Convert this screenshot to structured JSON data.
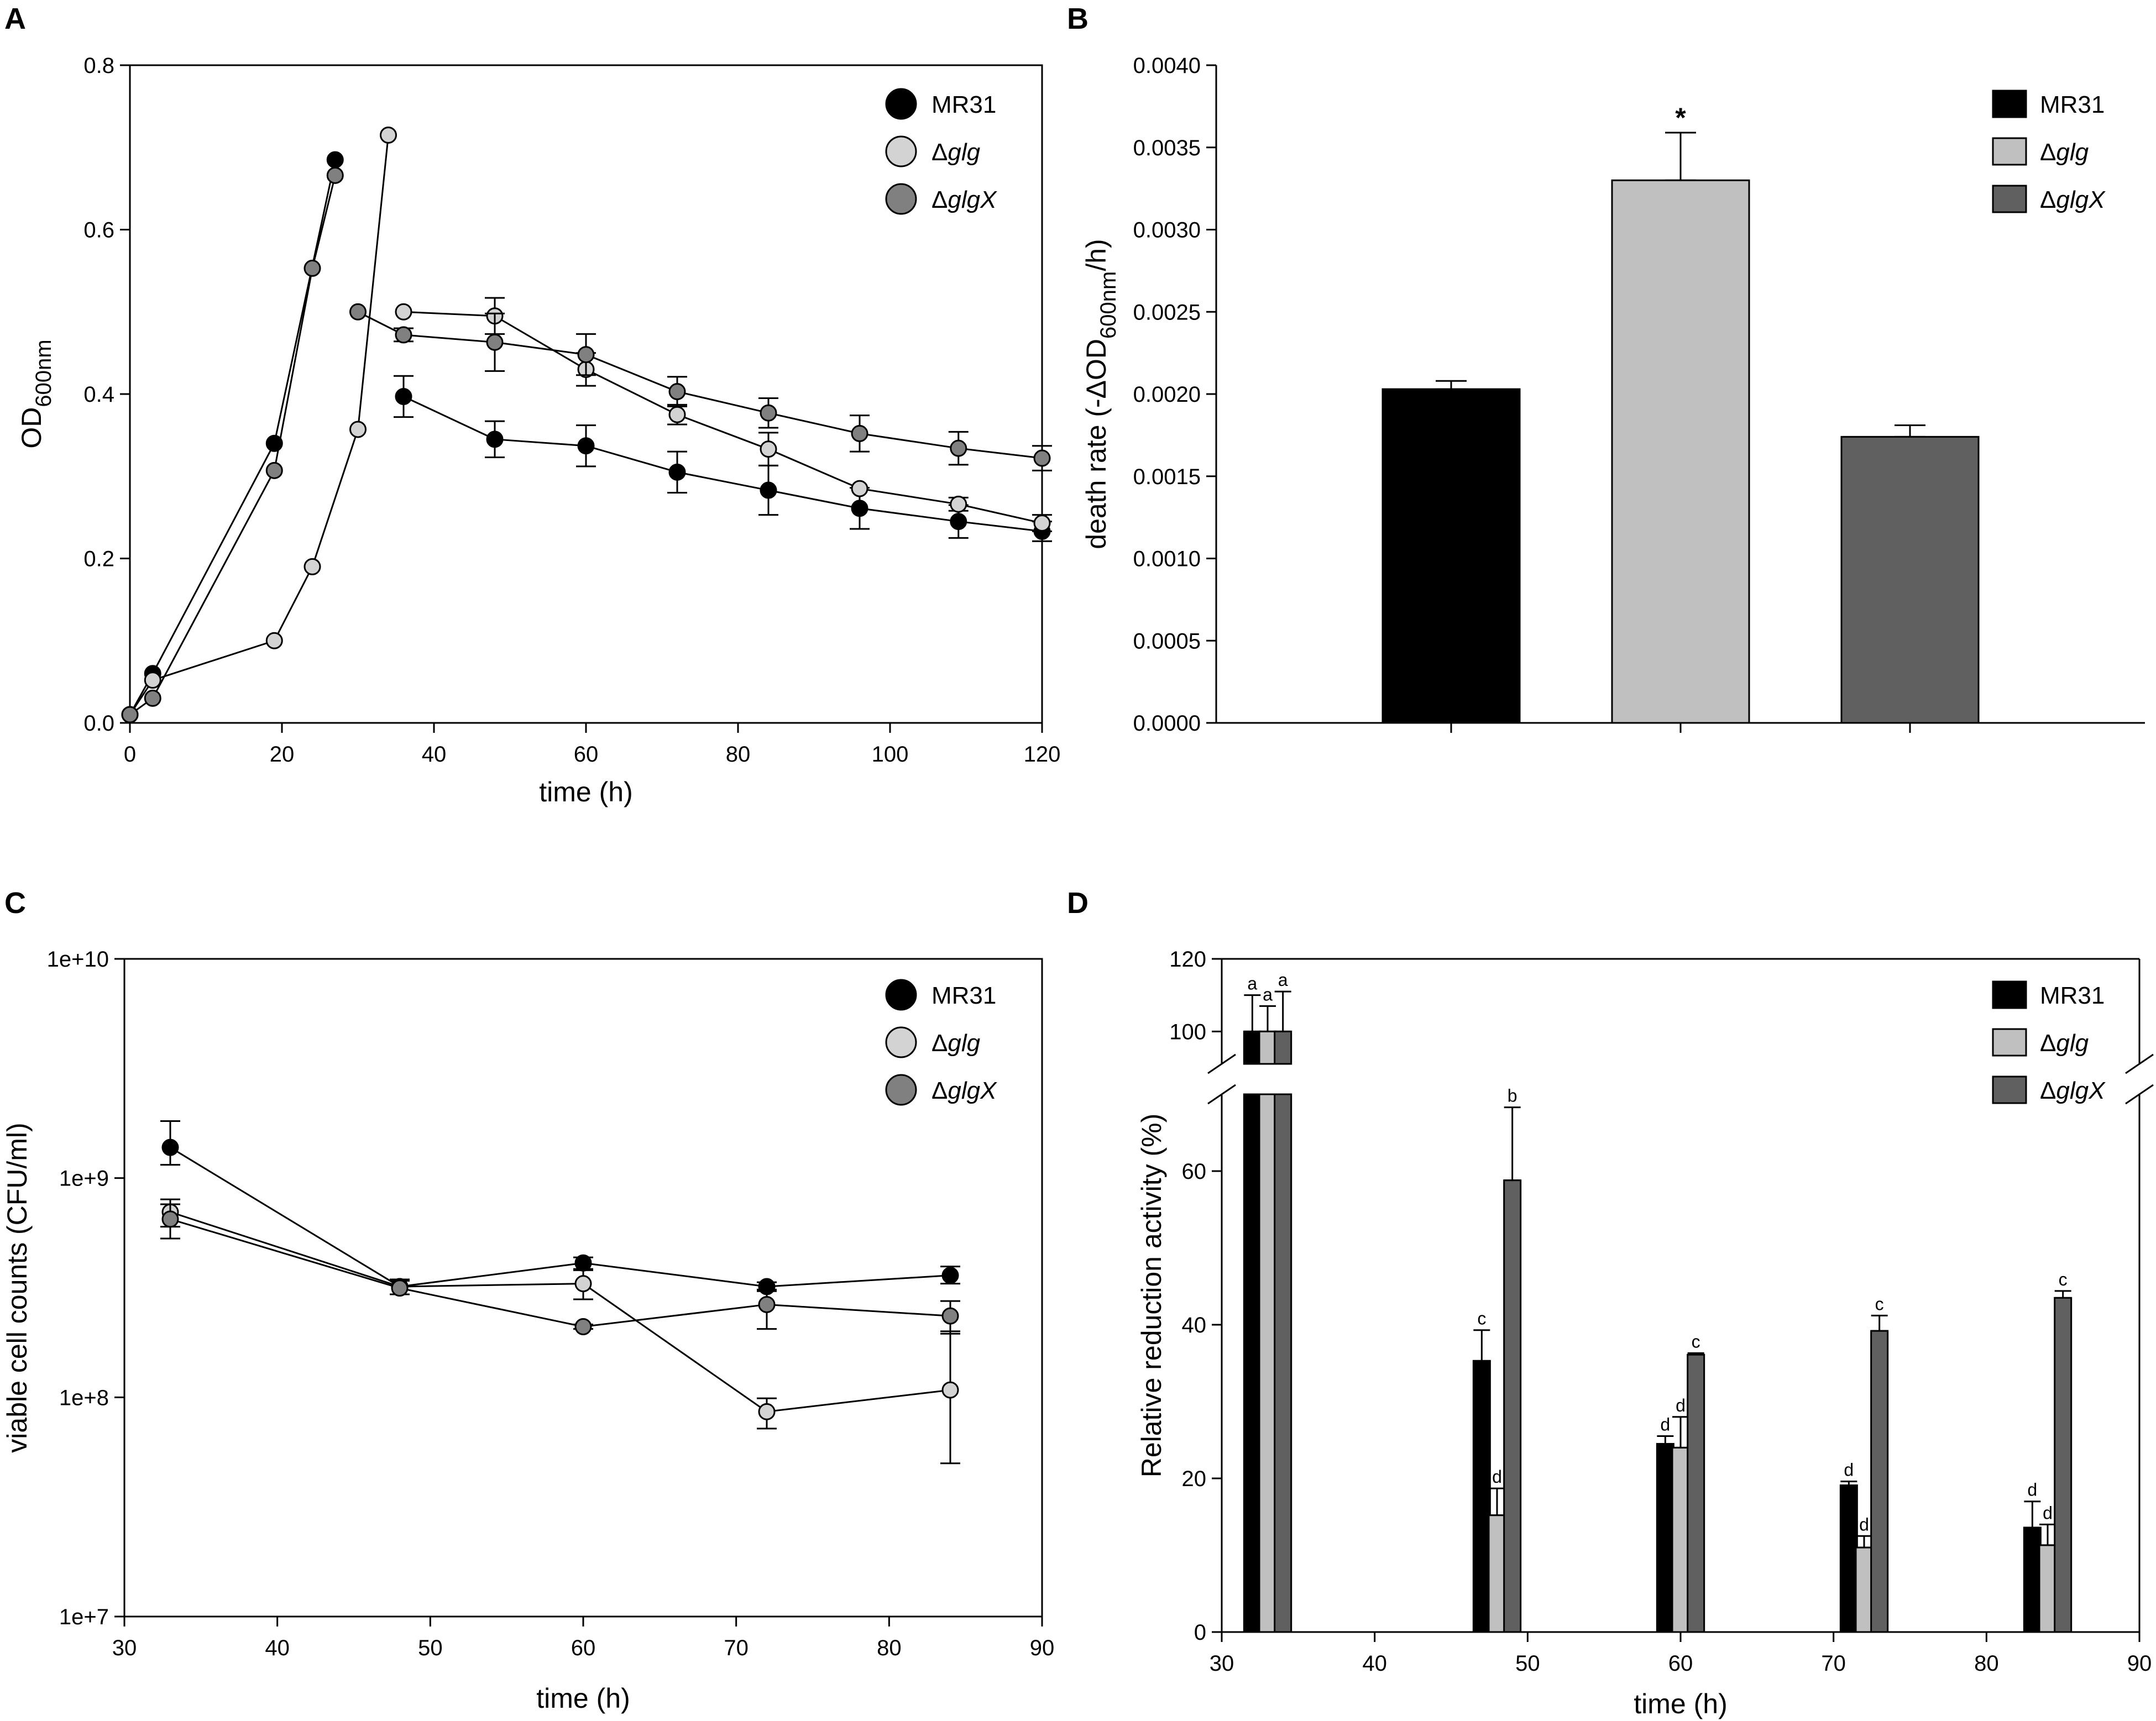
{
  "chart_data": [
    {
      "panel": "A",
      "type": "line",
      "xlabel": "time (h)",
      "ylabel": "OD600nm",
      "ylabel_main": "OD",
      "ylabel_sub": "600nm",
      "xlim": [
        0,
        120
      ],
      "ylim": [
        0,
        0.8
      ],
      "x_ticks": [
        0,
        20,
        40,
        60,
        80,
        100,
        120
      ],
      "x_tick_labels": [
        "0",
        "20",
        "40",
        "60",
        "80",
        "100",
        "120"
      ],
      "y_ticks": [
        0,
        0.2,
        0.4,
        0.6,
        0.8
      ],
      "y_tick_labels": [
        "0.0",
        "0.2",
        "0.4",
        "0.6",
        "0.8"
      ],
      "legend": {
        "position": "top-right",
        "entries": [
          {
            "prefix": "",
            "name": "MR31",
            "italic": false
          },
          {
            "prefix": "Δ",
            "name": "glg",
            "italic": true
          },
          {
            "prefix": "Δ",
            "name": "glgX",
            "italic": true
          }
        ]
      },
      "series": [
        {
          "name": "MR31",
          "color": "#000000",
          "segments": [
            [
              {
                "x": 0,
                "y": 0.01
              },
              {
                "x": 3,
                "y": 0.06
              },
              {
                "x": 19,
                "y": 0.34
              },
              {
                "x": 27,
                "y": 0.685
              }
            ],
            [
              {
                "x": 36,
                "y": 0.397,
                "err": 0.025
              },
              {
                "x": 48,
                "y": 0.345,
                "err": 0.022
              },
              {
                "x": 60,
                "y": 0.337,
                "err": 0.025
              },
              {
                "x": 72,
                "y": 0.305,
                "err": 0.025
              },
              {
                "x": 84,
                "y": 0.283,
                "err": 0.03
              },
              {
                "x": 96,
                "y": 0.261,
                "err": 0.025
              },
              {
                "x": 109,
                "y": 0.245,
                "err": 0.02
              },
              {
                "x": 120,
                "y": 0.233,
                "err": 0.012
              }
            ]
          ]
        },
        {
          "name": "Δglg",
          "color": "#d3d3d3",
          "segments": [
            [
              {
                "x": 0,
                "y": 0.01
              },
              {
                "x": 3,
                "y": 0.052
              },
              {
                "x": 19,
                "y": 0.1
              },
              {
                "x": 24,
                "y": 0.19
              },
              {
                "x": 30,
                "y": 0.357
              },
              {
                "x": 34,
                "y": 0.715
              }
            ],
            [
              {
                "x": 36,
                "y": 0.5,
                "err": 0
              },
              {
                "x": 48,
                "y": 0.495,
                "err": 0.022
              },
              {
                "x": 60,
                "y": 0.43,
                "err": 0.02
              },
              {
                "x": 72,
                "y": 0.375,
                "err": 0.012
              },
              {
                "x": 84,
                "y": 0.333,
                "err": 0.02
              },
              {
                "x": 96,
                "y": 0.285,
                "err": 0
              },
              {
                "x": 109,
                "y": 0.266,
                "err": 0.008
              },
              {
                "x": 120,
                "y": 0.243,
                "err": 0.01
              }
            ]
          ]
        },
        {
          "name": "ΔglgX",
          "color": "#808080",
          "segments": [
            [
              {
                "x": 0,
                "y": 0.01
              },
              {
                "x": 3,
                "y": 0.03
              },
              {
                "x": 19,
                "y": 0.307
              },
              {
                "x": 24,
                "y": 0.553
              },
              {
                "x": 27,
                "y": 0.666
              }
            ],
            [
              {
                "x": 30,
                "y": 0.5
              },
              {
                "x": 36,
                "y": 0.472,
                "err": 0.008
              },
              {
                "x": 48,
                "y": 0.463,
                "err": 0.035
              },
              {
                "x": 60,
                "y": 0.448,
                "err": 0.025
              },
              {
                "x": 72,
                "y": 0.403,
                "err": 0.018
              },
              {
                "x": 84,
                "y": 0.377,
                "err": 0.018
              },
              {
                "x": 96,
                "y": 0.352,
                "err": 0.022
              },
              {
                "x": 109,
                "y": 0.334,
                "err": 0.02
              },
              {
                "x": 120,
                "y": 0.322,
                "err": 0.015
              }
            ]
          ]
        }
      ]
    },
    {
      "panel": "B",
      "type": "bar",
      "xlabel": "",
      "ylabel": "death rate (-ΔOD600nm/h)",
      "ylabel_main": "death rate (-ΔOD",
      "ylabel_sub": "600nm",
      "ylabel_end": "/h)",
      "ylim": [
        0,
        0.004
      ],
      "y_ticks": [
        0,
        0.0005,
        0.001,
        0.0015,
        0.002,
        0.0025,
        0.003,
        0.0035,
        0.004
      ],
      "y_tick_labels": [
        "0.0000",
        "0.0005",
        "0.0010",
        "0.0015",
        "0.0020",
        "0.0025",
        "0.0030",
        "0.0035",
        "0.0040"
      ],
      "categories": [
        "MR31",
        "Δglg",
        "ΔglgX"
      ],
      "values": [
        0.00203,
        0.0033,
        0.00174
      ],
      "errors": [
        5e-05,
        0.00029,
        7e-05
      ],
      "colors": [
        "#000000",
        "#c0c0c0",
        "#606060"
      ],
      "annotation": "*",
      "legend": {
        "position": "top-right",
        "entries": [
          {
            "prefix": "",
            "name": "MR31",
            "italic": false
          },
          {
            "prefix": "Δ",
            "name": "glg",
            "italic": true
          },
          {
            "prefix": "Δ",
            "name": "glgX",
            "italic": true
          }
        ]
      }
    },
    {
      "panel": "C",
      "type": "line",
      "yscale": "log",
      "xlabel": "time (h)",
      "ylabel": "viable cell counts (CFU/ml)",
      "xlim": [
        30,
        90
      ],
      "ylim": [
        10000000,
        10000000000
      ],
      "x_ticks": [
        30,
        40,
        50,
        60,
        70,
        80,
        90
      ],
      "x_tick_labels": [
        "30",
        "40",
        "50",
        "60",
        "70",
        "80",
        "90"
      ],
      "y_ticks": [
        10000000,
        100000000,
        1000000000,
        10000000000
      ],
      "y_tick_labels": [
        "1e+7",
        "1e+8",
        "1e+9",
        "1e+10"
      ],
      "legend": {
        "position": "top-right",
        "entries": [
          {
            "prefix": "",
            "name": "MR31",
            "italic": false
          },
          {
            "prefix": "Δ",
            "name": "glg",
            "italic": true
          },
          {
            "prefix": "Δ",
            "name": "glgX",
            "italic": true
          }
        ]
      },
      "series": [
        {
          "name": "MR31",
          "color": "#000000",
          "points": [
            {
              "x": 33,
              "y": 1380000000,
              "lo": 1150000000,
              "hi": 1820000000
            },
            {
              "x": 48,
              "y": 320000000,
              "lo": 295000000,
              "hi": 345000000
            },
            {
              "x": 60,
              "y": 410000000,
              "lo": 385000000,
              "hi": 435000000
            },
            {
              "x": 72,
              "y": 320000000,
              "lo": 305000000,
              "hi": 335000000
            },
            {
              "x": 84,
              "y": 360000000,
              "lo": 330000000,
              "hi": 395000000
            }
          ]
        },
        {
          "name": "Δglg",
          "color": "#d3d3d3",
          "points": [
            {
              "x": 33,
              "y": 700000000,
              "lo": 600000000,
              "hi": 800000000
            },
            {
              "x": 48,
              "y": 320000000,
              "lo": 295000000,
              "hi": 345000000
            },
            {
              "x": 60,
              "y": 330000000,
              "lo": 280000000,
              "hi": 380000000
            },
            {
              "x": 72,
              "y": 86000000,
              "lo": 72000000,
              "hi": 99000000
            },
            {
              "x": 84,
              "y": 108000000,
              "lo": 50000000,
              "hi": 200000000
            }
          ]
        },
        {
          "name": "ΔglgX",
          "color": "#808080",
          "points": [
            {
              "x": 33,
              "y": 650000000,
              "lo": 530000000,
              "hi": 760000000
            },
            {
              "x": 48,
              "y": 315000000,
              "lo": 295000000,
              "hi": 340000000
            },
            {
              "x": 60,
              "y": 210000000,
              "lo": 205000000,
              "hi": 215000000
            },
            {
              "x": 72,
              "y": 265000000,
              "lo": 205000000,
              "hi": 310000000
            },
            {
              "x": 84,
              "y": 235000000,
              "lo": 195000000,
              "hi": 275000000
            }
          ]
        }
      ]
    },
    {
      "panel": "D",
      "type": "bar",
      "xlabel": "time (h)",
      "ylabel": "Relative reduction activity (%)",
      "xlim": [
        30,
        90
      ],
      "ylim": [
        0,
        120
      ],
      "axis_break": [
        70,
        90
      ],
      "x_ticks": [
        30,
        40,
        50,
        60,
        70,
        80,
        90
      ],
      "x_tick_labels": [
        "30",
        "40",
        "50",
        "60",
        "70",
        "80",
        "90"
      ],
      "y_ticks": [
        0,
        20,
        40,
        60,
        100,
        120
      ],
      "y_tick_labels": [
        "0",
        "20",
        "40",
        "60",
        "100",
        "120"
      ],
      "categories": [
        "32",
        "48",
        "60",
        "72",
        "84"
      ],
      "legend": {
        "position": "top-right",
        "entries": [
          {
            "prefix": "",
            "name": "MR31",
            "italic": false
          },
          {
            "prefix": "Δ",
            "name": "glg",
            "italic": true
          },
          {
            "prefix": "Δ",
            "name": "glgX",
            "italic": true
          }
        ]
      },
      "series": [
        {
          "name": "MR31",
          "color": "#000000",
          "x": [
            32,
            47,
            59,
            71,
            83
          ],
          "values": [
            100,
            35.3,
            24.5,
            19.1,
            13.6
          ],
          "errors": [
            10,
            4,
            1,
            0.5,
            3.4
          ],
          "labels": [
            "a",
            "c",
            "d",
            "d",
            "d"
          ]
        },
        {
          "name": "Δglg",
          "color": "#c0c0c0",
          "x": [
            33,
            48,
            60,
            72,
            84
          ],
          "values": [
            100,
            15.2,
            24,
            11,
            11.3
          ],
          "errors": [
            7,
            3.5,
            4,
            1.5,
            2.7
          ],
          "labels": [
            "a",
            "d",
            "d",
            "d",
            "d"
          ]
        },
        {
          "name": "ΔglgX",
          "color": "#606060",
          "x": [
            34,
            49,
            61,
            73,
            85
          ],
          "values": [
            100,
            58.8,
            36.1,
            39.2,
            43.5
          ],
          "errors": [
            11,
            9.5,
            0.2,
            2,
            0.9
          ],
          "labels": [
            "a",
            "b",
            "c",
            "c",
            "c"
          ]
        }
      ]
    }
  ]
}
